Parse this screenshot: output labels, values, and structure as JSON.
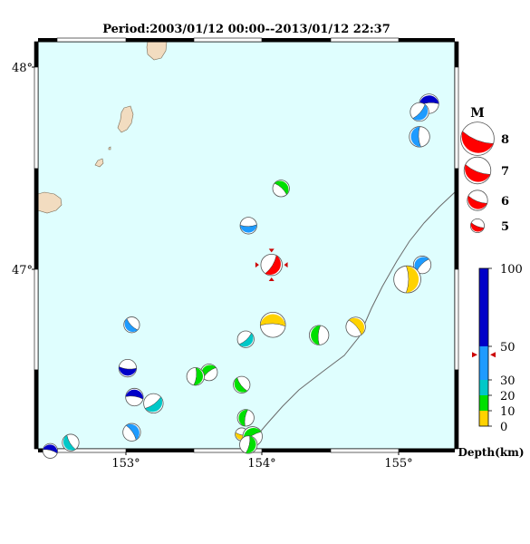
{
  "title": "Period:2003/01/12 00:00--2013/01/12 22:37",
  "map": {
    "lon_min": 152.33,
    "lon_max": 155.4,
    "lat_min": 46.13,
    "lat_max": 48.1,
    "lon_ticks": [
      "153°",
      "154°",
      "155°"
    ],
    "lat_ticks": [
      "48°",
      "47°"
    ],
    "ocean_color": "#dffefe",
    "land_color": "#f2dcc0",
    "trench_color": "#6a6a6a"
  },
  "main_event": {
    "lon": 154.05,
    "lat": 47.02,
    "magnitude": 5.5,
    "color": "#ff0000",
    "marker_color": "#cc0000"
  },
  "events": [
    {
      "lon": 155.21,
      "lat": 47.8,
      "magnitude": 5.3,
      "depth_km": 80
    },
    {
      "lon": 155.14,
      "lat": 47.76,
      "magnitude": 5.2,
      "depth_km": 40
    },
    {
      "lon": 155.14,
      "lat": 47.64,
      "magnitude": 5.4,
      "depth_km": 42
    },
    {
      "lon": 154.12,
      "lat": 47.39,
      "magnitude": 5.0,
      "depth_km": 15
    },
    {
      "lon": 153.88,
      "lat": 47.21,
      "magnitude": 5.0,
      "depth_km": 35
    },
    {
      "lon": 155.16,
      "lat": 47.02,
      "magnitude": 5.1,
      "depth_km": 43
    },
    {
      "lon": 155.05,
      "lat": 46.95,
      "magnitude": 6.1,
      "depth_km": 5
    },
    {
      "lon": 153.02,
      "lat": 46.73,
      "magnitude": 4.9,
      "depth_km": 42
    },
    {
      "lon": 154.06,
      "lat": 46.73,
      "magnitude": 5.9,
      "depth_km": 5
    },
    {
      "lon": 153.86,
      "lat": 46.66,
      "magnitude": 5.0,
      "depth_km": 30
    },
    {
      "lon": 154.4,
      "lat": 46.68,
      "magnitude": 5.3,
      "depth_km": 15
    },
    {
      "lon": 154.67,
      "lat": 46.72,
      "magnitude": 5.3,
      "depth_km": 5
    },
    {
      "lon": 152.99,
      "lat": 46.52,
      "magnitude": 5.1,
      "depth_km": 75
    },
    {
      "lon": 153.59,
      "lat": 46.5,
      "magnitude": 5.0,
      "depth_km": 15
    },
    {
      "lon": 153.49,
      "lat": 46.48,
      "magnitude": 5.1,
      "depth_km": 15
    },
    {
      "lon": 153.83,
      "lat": 46.44,
      "magnitude": 5.0,
      "depth_km": 15
    },
    {
      "lon": 153.04,
      "lat": 46.38,
      "magnitude": 5.1,
      "depth_km": 80
    },
    {
      "lon": 153.18,
      "lat": 46.35,
      "magnitude": 5.3,
      "depth_km": 27
    },
    {
      "lon": 153.86,
      "lat": 46.28,
      "magnitude": 5.0,
      "depth_km": 15
    },
    {
      "lon": 153.02,
      "lat": 46.21,
      "magnitude": 5.1,
      "depth_km": 40
    },
    {
      "lon": 153.83,
      "lat": 46.2,
      "magnitude": 4.6,
      "depth_km": 5
    },
    {
      "lon": 153.91,
      "lat": 46.19,
      "magnitude": 5.3,
      "depth_km": 15
    },
    {
      "lon": 153.88,
      "lat": 46.15,
      "magnitude": 5.1,
      "depth_km": 15
    },
    {
      "lon": 152.57,
      "lat": 46.16,
      "magnitude": 5.0,
      "depth_km": 30
    },
    {
      "lon": 152.42,
      "lat": 46.12,
      "magnitude": 4.8,
      "depth_km": 75
    }
  ],
  "magnitude_legend": {
    "title": "M",
    "items": [
      {
        "label": "8",
        "magnitude": 8
      },
      {
        "label": "7",
        "magnitude": 7
      },
      {
        "label": "6",
        "magnitude": 6
      },
      {
        "label": "5",
        "magnitude": 5
      }
    ]
  },
  "depth_scale": {
    "label": "Depth(km)",
    "ticks": [
      "100",
      "50",
      "30",
      "20",
      "10",
      "0"
    ],
    "main_event_depth_km": 45,
    "bands": [
      {
        "from_km": 0,
        "to_km": 10,
        "color": "#ffd200"
      },
      {
        "from_km": 10,
        "to_km": 20,
        "color": "#00e000"
      },
      {
        "from_km": 20,
        "to_km": 30,
        "color": "#00c8c8"
      },
      {
        "from_km": 30,
        "to_km": 50,
        "color": "#1e9bff"
      },
      {
        "from_km": 50,
        "to_km": 100,
        "color": "#0000c8"
      }
    ]
  }
}
